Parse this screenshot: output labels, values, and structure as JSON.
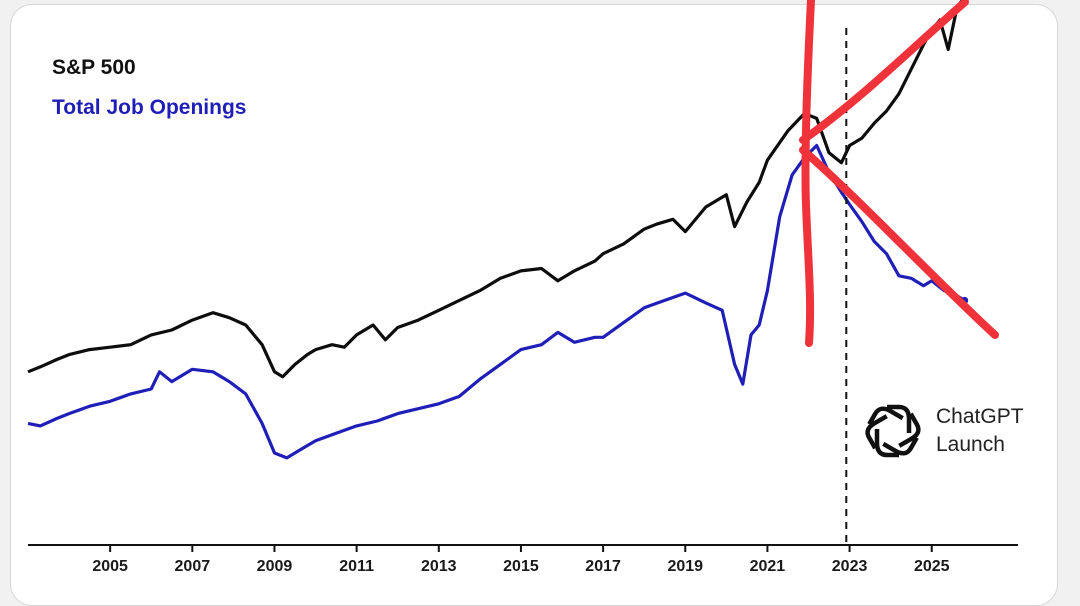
{
  "chart_data": {
    "type": "line",
    "title": "",
    "xlabel": "",
    "ylabel": "",
    "xlim": [
      2003.0,
      2027.1
    ],
    "ylim": [
      0,
      1
    ],
    "x_ticks": [
      "2005",
      "2007",
      "2009",
      "2011",
      "2013",
      "2015",
      "2017",
      "2019",
      "2021",
      "2023",
      "2025"
    ],
    "x_tick_values": [
      2005,
      2007,
      2009,
      2011,
      2013,
      2015,
      2017,
      2019,
      2021,
      2023,
      2025
    ],
    "grid": false,
    "legend_position": "top-left",
    "series": [
      {
        "name": "S&P 500",
        "color": "#0d0d0d",
        "points": [
          [
            2003.0,
            0.285
          ],
          [
            2003.3,
            0.295
          ],
          [
            2003.7,
            0.31
          ],
          [
            2004.0,
            0.32
          ],
          [
            2004.5,
            0.33
          ],
          [
            2005.0,
            0.335
          ],
          [
            2005.5,
            0.34
          ],
          [
            2006.0,
            0.36
          ],
          [
            2006.5,
            0.37
          ],
          [
            2007.0,
            0.39
          ],
          [
            2007.5,
            0.405
          ],
          [
            2007.9,
            0.395
          ],
          [
            2008.3,
            0.38
          ],
          [
            2008.7,
            0.34
          ],
          [
            2009.0,
            0.285
          ],
          [
            2009.2,
            0.275
          ],
          [
            2009.5,
            0.3
          ],
          [
            2009.8,
            0.32
          ],
          [
            2010.0,
            0.33
          ],
          [
            2010.4,
            0.34
          ],
          [
            2010.7,
            0.335
          ],
          [
            2011.0,
            0.36
          ],
          [
            2011.4,
            0.38
          ],
          [
            2011.7,
            0.35
          ],
          [
            2012.0,
            0.375
          ],
          [
            2012.5,
            0.39
          ],
          [
            2013.0,
            0.41
          ],
          [
            2013.5,
            0.43
          ],
          [
            2014.0,
            0.45
          ],
          [
            2014.5,
            0.475
          ],
          [
            2015.0,
            0.49
          ],
          [
            2015.5,
            0.495
          ],
          [
            2015.9,
            0.47
          ],
          [
            2016.3,
            0.49
          ],
          [
            2016.8,
            0.51
          ],
          [
            2017.0,
            0.525
          ],
          [
            2017.5,
            0.545
          ],
          [
            2018.0,
            0.575
          ],
          [
            2018.3,
            0.585
          ],
          [
            2018.7,
            0.595
          ],
          [
            2019.0,
            0.57
          ],
          [
            2019.5,
            0.62
          ],
          [
            2020.0,
            0.645
          ],
          [
            2020.2,
            0.58
          ],
          [
            2020.5,
            0.63
          ],
          [
            2020.8,
            0.67
          ],
          [
            2021.0,
            0.715
          ],
          [
            2021.5,
            0.775
          ],
          [
            2021.9,
            0.81
          ],
          [
            2022.2,
            0.8
          ],
          [
            2022.5,
            0.73
          ],
          [
            2022.8,
            0.71
          ],
          [
            2023.0,
            0.745
          ],
          [
            2023.3,
            0.76
          ],
          [
            2023.6,
            0.79
          ],
          [
            2023.9,
            0.815
          ],
          [
            2024.2,
            0.85
          ],
          [
            2024.5,
            0.9
          ],
          [
            2024.8,
            0.95
          ],
          [
            2025.0,
            0.98
          ],
          [
            2025.2,
            1.0
          ],
          [
            2025.4,
            0.94
          ],
          [
            2025.6,
            1.02
          ],
          [
            2025.8,
            1.05
          ]
        ]
      },
      {
        "name": "Total Job Openings",
        "color": "#1f1fb8",
        "points": [
          [
            2003.0,
            0.18
          ],
          [
            2003.3,
            0.175
          ],
          [
            2003.7,
            0.19
          ],
          [
            2004.0,
            0.2
          ],
          [
            2004.5,
            0.215
          ],
          [
            2005.0,
            0.225
          ],
          [
            2005.5,
            0.24
          ],
          [
            2006.0,
            0.25
          ],
          [
            2006.2,
            0.285
          ],
          [
            2006.5,
            0.265
          ],
          [
            2007.0,
            0.29
          ],
          [
            2007.5,
            0.285
          ],
          [
            2007.9,
            0.265
          ],
          [
            2008.3,
            0.24
          ],
          [
            2008.7,
            0.18
          ],
          [
            2009.0,
            0.12
          ],
          [
            2009.3,
            0.11
          ],
          [
            2009.7,
            0.13
          ],
          [
            2010.0,
            0.145
          ],
          [
            2010.5,
            0.16
          ],
          [
            2011.0,
            0.175
          ],
          [
            2011.5,
            0.185
          ],
          [
            2012.0,
            0.2
          ],
          [
            2012.5,
            0.21
          ],
          [
            2013.0,
            0.22
          ],
          [
            2013.5,
            0.235
          ],
          [
            2014.0,
            0.27
          ],
          [
            2014.5,
            0.3
          ],
          [
            2015.0,
            0.33
          ],
          [
            2015.5,
            0.34
          ],
          [
            2015.9,
            0.365
          ],
          [
            2016.3,
            0.345
          ],
          [
            2016.8,
            0.355
          ],
          [
            2017.0,
            0.355
          ],
          [
            2017.5,
            0.385
          ],
          [
            2018.0,
            0.415
          ],
          [
            2018.5,
            0.43
          ],
          [
            2019.0,
            0.445
          ],
          [
            2019.5,
            0.425
          ],
          [
            2019.9,
            0.41
          ],
          [
            2020.2,
            0.3
          ],
          [
            2020.4,
            0.26
          ],
          [
            2020.6,
            0.36
          ],
          [
            2020.8,
            0.38
          ],
          [
            2021.0,
            0.45
          ],
          [
            2021.3,
            0.6
          ],
          [
            2021.6,
            0.685
          ],
          [
            2021.9,
            0.72
          ],
          [
            2022.2,
            0.745
          ],
          [
            2022.5,
            0.69
          ],
          [
            2022.8,
            0.65
          ],
          [
            2023.0,
            0.625
          ],
          [
            2023.3,
            0.59
          ],
          [
            2023.6,
            0.55
          ],
          [
            2023.9,
            0.525
          ],
          [
            2024.2,
            0.48
          ],
          [
            2024.5,
            0.475
          ],
          [
            2024.8,
            0.46
          ],
          [
            2025.0,
            0.47
          ],
          [
            2025.3,
            0.45
          ],
          [
            2025.6,
            0.44
          ],
          [
            2025.8,
            0.43
          ]
        ]
      }
    ],
    "annotations": [
      {
        "type": "vertical-dashed-line",
        "x": 2022.92,
        "label": "ChatGPT Launch"
      }
    ]
  },
  "legend": {
    "sp500": "S&P 500",
    "jobs": "Total Job Openings"
  },
  "badge": {
    "line1": "ChatGPT",
    "line2": "Launch",
    "icon": "openai-logo-icon"
  }
}
